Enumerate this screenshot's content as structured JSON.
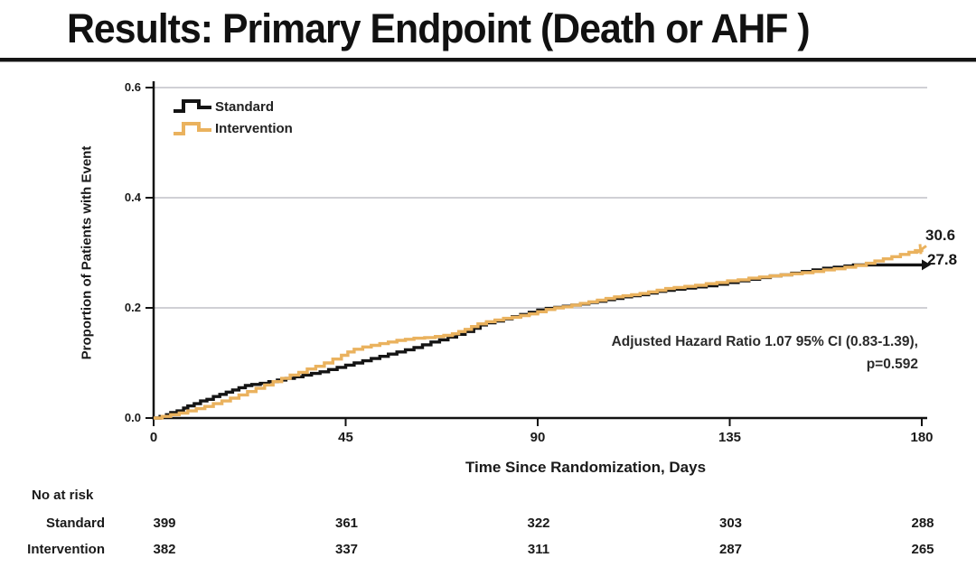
{
  "slide": {
    "title": "Results: Primary Endpoint (Death or AHF )"
  },
  "chart_data": {
    "type": "line",
    "subtype": "step",
    "xlabel": "Time Since Randomization, Days",
    "ylabel": "Proportion of Patients with Event",
    "xlim": [
      0,
      180
    ],
    "ylim": [
      0.0,
      0.6
    ],
    "xticks": [
      0,
      45,
      90,
      135,
      180
    ],
    "yticks": [
      0.0,
      0.2,
      0.4,
      0.6
    ],
    "grid": "horizontal-gray",
    "legend_position": "top-left",
    "annotation": {
      "line1": "Adjusted Hazard Ratio 1.07 95% CI (0.83-1.39),",
      "line2": "p=0.592"
    },
    "colors": {
      "standard": "#141414",
      "intervention": "#EAB25E",
      "gridline": "#b5b5bc"
    },
    "series": [
      {
        "name": "Standard",
        "color": "#141414",
        "end_label": "27.8",
        "end_value_percent": 27.8,
        "points": [
          [
            0,
            0
          ],
          [
            1.5,
            0.003
          ],
          [
            3,
            0.006
          ],
          [
            4,
            0.01
          ],
          [
            5.5,
            0.013
          ],
          [
            7,
            0.018
          ],
          [
            8,
            0.022
          ],
          [
            9.5,
            0.026
          ],
          [
            11,
            0.031
          ],
          [
            12.5,
            0.034
          ],
          [
            14,
            0.039
          ],
          [
            15.5,
            0.043
          ],
          [
            17,
            0.047
          ],
          [
            18.5,
            0.051
          ],
          [
            20,
            0.055
          ],
          [
            21.5,
            0.059
          ],
          [
            23,
            0.061
          ],
          [
            25,
            0.063
          ],
          [
            27,
            0.066
          ],
          [
            29,
            0.069
          ],
          [
            31,
            0.072
          ],
          [
            33,
            0.075
          ],
          [
            35,
            0.078
          ],
          [
            37,
            0.081
          ],
          [
            39,
            0.084
          ],
          [
            41,
            0.088
          ],
          [
            43,
            0.092
          ],
          [
            45,
            0.096
          ],
          [
            47,
            0.1
          ],
          [
            49,
            0.104
          ],
          [
            51,
            0.108
          ],
          [
            53,
            0.112
          ],
          [
            55,
            0.116
          ],
          [
            57,
            0.12
          ],
          [
            59,
            0.124
          ],
          [
            61,
            0.128
          ],
          [
            63,
            0.133
          ],
          [
            65,
            0.138
          ],
          [
            67,
            0.142
          ],
          [
            69,
            0.147
          ],
          [
            71,
            0.152
          ],
          [
            73,
            0.157
          ],
          [
            75,
            0.163
          ],
          [
            76.5,
            0.169
          ],
          [
            78,
            0.173
          ],
          [
            80,
            0.176
          ],
          [
            82,
            0.18
          ],
          [
            84,
            0.184
          ],
          [
            86,
            0.188
          ],
          [
            88,
            0.192
          ],
          [
            90,
            0.196
          ],
          [
            92,
            0.199
          ],
          [
            94,
            0.201
          ],
          [
            96,
            0.203
          ],
          [
            98,
            0.205
          ],
          [
            100,
            0.207
          ],
          [
            102,
            0.21
          ],
          [
            104,
            0.212
          ],
          [
            106,
            0.215
          ],
          [
            108,
            0.217
          ],
          [
            110,
            0.22
          ],
          [
            112,
            0.222
          ],
          [
            114,
            0.224
          ],
          [
            116,
            0.227
          ],
          [
            118,
            0.23
          ],
          [
            120,
            0.232
          ],
          [
            122,
            0.234
          ],
          [
            124.5,
            0.236
          ],
          [
            127,
            0.238
          ],
          [
            129.5,
            0.24
          ],
          [
            132,
            0.243
          ],
          [
            134.5,
            0.246
          ],
          [
            137,
            0.249
          ],
          [
            139.5,
            0.252
          ],
          [
            142,
            0.255
          ],
          [
            144.5,
            0.258
          ],
          [
            147,
            0.26
          ],
          [
            149.5,
            0.263
          ],
          [
            152,
            0.266
          ],
          [
            154.5,
            0.269
          ],
          [
            157,
            0.272
          ],
          [
            159.5,
            0.274
          ],
          [
            162,
            0.276
          ],
          [
            164,
            0.278
          ],
          [
            180,
            0.278
          ]
        ]
      },
      {
        "name": "Intervention",
        "color": "#EAB25E",
        "end_label": "30.6",
        "end_value_percent": 30.6,
        "points": [
          [
            0,
            0
          ],
          [
            2,
            0.003
          ],
          [
            4,
            0.006
          ],
          [
            6,
            0.009
          ],
          [
            8,
            0.013
          ],
          [
            10,
            0.017
          ],
          [
            12,
            0.021
          ],
          [
            14,
            0.026
          ],
          [
            16,
            0.031
          ],
          [
            18,
            0.036
          ],
          [
            20,
            0.042
          ],
          [
            22,
            0.048
          ],
          [
            24,
            0.054
          ],
          [
            26,
            0.06
          ],
          [
            28,
            0.066
          ],
          [
            30,
            0.072
          ],
          [
            32,
            0.078
          ],
          [
            34,
            0.083
          ],
          [
            36,
            0.089
          ],
          [
            38,
            0.094
          ],
          [
            40,
            0.1
          ],
          [
            42,
            0.107
          ],
          [
            44,
            0.114
          ],
          [
            45.5,
            0.12
          ],
          [
            47,
            0.125
          ],
          [
            49,
            0.129
          ],
          [
            51,
            0.132
          ],
          [
            53,
            0.135
          ],
          [
            55,
            0.138
          ],
          [
            57,
            0.141
          ],
          [
            59,
            0.143
          ],
          [
            61,
            0.145
          ],
          [
            63.5,
            0.146
          ],
          [
            66,
            0.148
          ],
          [
            68,
            0.15
          ],
          [
            70,
            0.153
          ],
          [
            71.5,
            0.157
          ],
          [
            73,
            0.161
          ],
          [
            74.5,
            0.166
          ],
          [
            76,
            0.171
          ],
          [
            78,
            0.175
          ],
          [
            80,
            0.178
          ],
          [
            82,
            0.181
          ],
          [
            84,
            0.183
          ],
          [
            86,
            0.186
          ],
          [
            88,
            0.189
          ],
          [
            90,
            0.193
          ],
          [
            92,
            0.197
          ],
          [
            94,
            0.2
          ],
          [
            96,
            0.202
          ],
          [
            98,
            0.205
          ],
          [
            100,
            0.208
          ],
          [
            102,
            0.211
          ],
          [
            104,
            0.214
          ],
          [
            106,
            0.217
          ],
          [
            108,
            0.22
          ],
          [
            110,
            0.222
          ],
          [
            112,
            0.224
          ],
          [
            114,
            0.226
          ],
          [
            116,
            0.229
          ],
          [
            118,
            0.232
          ],
          [
            120,
            0.235
          ],
          [
            122,
            0.237
          ],
          [
            124.5,
            0.239
          ],
          [
            127,
            0.241
          ],
          [
            129.5,
            0.244
          ],
          [
            132,
            0.246
          ],
          [
            134.5,
            0.249
          ],
          [
            137,
            0.251
          ],
          [
            139.5,
            0.254
          ],
          [
            142,
            0.256
          ],
          [
            144.5,
            0.258
          ],
          [
            147,
            0.26
          ],
          [
            149.5,
            0.262
          ],
          [
            152,
            0.264
          ],
          [
            154.5,
            0.266
          ],
          [
            157,
            0.269
          ],
          [
            159.5,
            0.271
          ],
          [
            162,
            0.274
          ],
          [
            164.5,
            0.277
          ],
          [
            167,
            0.281
          ],
          [
            169,
            0.285
          ],
          [
            171,
            0.289
          ],
          [
            173,
            0.293
          ],
          [
            175,
            0.297
          ],
          [
            177,
            0.301
          ],
          [
            178.5,
            0.304
          ],
          [
            180,
            0.306
          ]
        ]
      }
    ]
  },
  "risk_table": {
    "header": "No at risk",
    "time_points": [
      0,
      45,
      90,
      135,
      180
    ],
    "rows": [
      {
        "label": "Standard",
        "values": [
          "399",
          "361",
          "322",
          "303",
          "288"
        ]
      },
      {
        "label": "Intervention",
        "values": [
          "382",
          "337",
          "311",
          "287",
          "265"
        ]
      }
    ]
  }
}
